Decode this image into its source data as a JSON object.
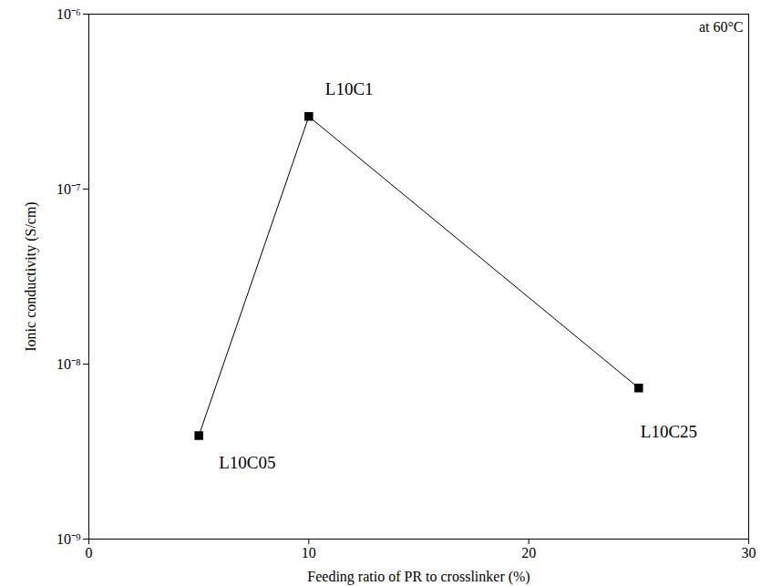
{
  "chart_data": {
    "type": "line",
    "annotations": [
      "at 60°C"
    ],
    "x_label": "Feeding ratio of PR to crosslinker (%)",
    "y_label": "Ionic conductivity (S/cm)",
    "x": [
      5,
      10,
      25
    ],
    "values": [
      3.9e-09,
      2.6e-07,
      7.3e-09
    ],
    "point_labels": [
      "L10C05",
      "L10C1",
      "L10C25"
    ],
    "color": "#000000",
    "marker": "square",
    "line_style": "solid",
    "log": "y",
    "grid": false,
    "xlim": [
      0,
      30
    ],
    "xticks": [
      0,
      10,
      20,
      30
    ],
    "ylim": [
      1e-09,
      1e-06
    ],
    "yticks": [
      {
        "value": 1e-09,
        "label": "10⁻⁹"
      },
      {
        "value": 1e-08,
        "label": "10⁻⁸"
      },
      {
        "value": 1e-07,
        "label": "10⁻⁷"
      },
      {
        "value": 1e-06,
        "label": "10⁻⁶"
      }
    ]
  }
}
